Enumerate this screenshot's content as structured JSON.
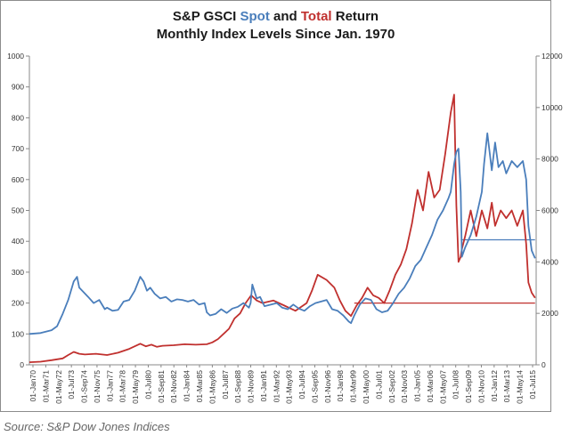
{
  "title": {
    "line1_prefix": "S&P GSCI ",
    "line1_spot": "Spot",
    "line1_and": " and ",
    "line1_total": "Total",
    "line1_suffix": " Return",
    "line2": "Monthly Index Levels Since Jan. 1970"
  },
  "source": "Source: S&P Dow Jones Indices",
  "colors": {
    "spot": "#4a7ebb",
    "total": "#c0302e",
    "axis": "#888888"
  },
  "chart_data": {
    "type": "line",
    "title": "S&P GSCI Spot and Total Return Monthly Index Levels Since Jan. 1970",
    "xlabel": "",
    "ylabel_left": "",
    "ylabel_right": "",
    "ylim_left": [
      0,
      1000
    ],
    "ylim_right": [
      0,
      12000
    ],
    "yticks_left": [
      0,
      100,
      200,
      300,
      400,
      500,
      600,
      700,
      800,
      900,
      1000
    ],
    "yticks_right": [
      0,
      2000,
      4000,
      6000,
      8000,
      10000,
      12000
    ],
    "x_tick_labels": [
      "01-Jan70",
      "01-Mar71",
      "01-May72",
      "01-Jul73",
      "01-Sep74",
      "01-Nov75",
      "01-Jan77",
      "01-Mar78",
      "01-May79",
      "01-Jul80",
      "01-Sep81",
      "01-Nov82",
      "01-Jan84",
      "01-Mar85",
      "01-May86",
      "01-Jul87",
      "01-Sep88",
      "01-Nov89",
      "01-Jan91",
      "01-Mar92",
      "01-May93",
      "01-Jul94",
      "01-Sep95",
      "01-Nov96",
      "01-Jan98",
      "01-Mar99",
      "01-May00",
      "01-Jul01",
      "01-Sep02",
      "01-Nov03",
      "01-Jan05",
      "01-Mar06",
      "01-May07",
      "01-Jul08",
      "01-Sep09",
      "01-Nov10",
      "01-Jan12",
      "01-Mar13",
      "01-May14",
      "01-Jul15"
    ],
    "x_range": [
      1970.0,
      2015.7
    ],
    "grid": false,
    "series": [
      {
        "name": "Spot",
        "axis": "left",
        "x": [
          1970.0,
          1971.0,
          1972.0,
          1972.5,
          1973.0,
          1973.5,
          1974.0,
          1974.3,
          1974.5,
          1974.9,
          1975.3,
          1975.8,
          1976.3,
          1976.8,
          1977.0,
          1977.5,
          1978.0,
          1978.5,
          1979.0,
          1979.5,
          1980.0,
          1980.3,
          1980.6,
          1980.9,
          1981.3,
          1981.8,
          1982.3,
          1982.8,
          1983.3,
          1983.8,
          1984.3,
          1984.8,
          1985.3,
          1985.8,
          1986.0,
          1986.3,
          1986.8,
          1987.3,
          1987.8,
          1988.3,
          1988.8,
          1989.3,
          1989.8,
          1989.95,
          1990.1,
          1990.5,
          1990.8,
          1991.2,
          1991.8,
          1992.3,
          1992.8,
          1993.3,
          1993.8,
          1994.3,
          1994.8,
          1995.3,
          1995.8,
          1996.3,
          1996.8,
          1997.3,
          1997.8,
          1998.3,
          1998.8,
          1999.0,
          1999.3,
          1999.8,
          2000.3,
          2000.8,
          2001.3,
          2001.8,
          2002.3,
          2002.8,
          2003.3,
          2003.8,
          2004.3,
          2004.8,
          2005.3,
          2005.8,
          2006.3,
          2006.8,
          2007.3,
          2007.8,
          2008.0,
          2008.3,
          2008.5,
          2008.7,
          2008.9,
          2009.0,
          2009.3,
          2009.8,
          2010.3,
          2010.8,
          2011.0,
          2011.3,
          2011.7,
          2012.0,
          2012.3,
          2012.7,
          2013.0,
          2013.5,
          2014.0,
          2014.5,
          2014.8,
          2015.0,
          2015.3,
          2015.6
        ],
        "y": [
          100,
          103,
          112,
          125,
          165,
          210,
          270,
          285,
          250,
          235,
          220,
          200,
          210,
          180,
          185,
          175,
          178,
          205,
          210,
          240,
          285,
          270,
          240,
          250,
          230,
          215,
          220,
          205,
          212,
          210,
          205,
          210,
          195,
          200,
          170,
          160,
          165,
          180,
          168,
          182,
          188,
          200,
          185,
          200,
          260,
          215,
          220,
          190,
          195,
          200,
          185,
          180,
          195,
          182,
          175,
          190,
          200,
          205,
          210,
          180,
          175,
          160,
          140,
          135,
          160,
          195,
          215,
          210,
          180,
          170,
          175,
          200,
          230,
          250,
          280,
          320,
          340,
          380,
          420,
          470,
          500,
          540,
          560,
          650,
          690,
          700,
          560,
          350,
          380,
          420,
          480,
          560,
          650,
          750,
          630,
          720,
          640,
          660,
          620,
          660,
          640,
          660,
          600,
          450,
          370,
          345
        ]
      },
      {
        "name": "Total",
        "axis": "right",
        "x": [
          1970.0,
          1971.0,
          1972.0,
          1973.0,
          1973.5,
          1974.0,
          1974.5,
          1975.0,
          1976.0,
          1977.0,
          1978.0,
          1979.0,
          1980.0,
          1980.5,
          1981.0,
          1981.5,
          1982.0,
          1983.0,
          1984.0,
          1985.0,
          1986.0,
          1986.5,
          1987.0,
          1988.0,
          1988.5,
          1989.0,
          1989.5,
          1990.0,
          1990.5,
          1991.0,
          1992.0,
          1993.0,
          1993.5,
          1994.0,
          1995.0,
          1995.5,
          1996.0,
          1996.8,
          1997.5,
          1998.0,
          1998.5,
          1999.0,
          1999.5,
          2000.0,
          2000.5,
          2001.0,
          2001.5,
          2002.0,
          2002.5,
          2003.0,
          2003.5,
          2004.0,
          2004.5,
          2005.0,
          2005.5,
          2006.0,
          2006.5,
          2007.0,
          2007.5,
          2008.0,
          2008.3,
          2008.5,
          2008.7,
          2008.9,
          2009.0,
          2009.3,
          2009.8,
          2010.3,
          2010.8,
          2011.3,
          2011.7,
          2012.0,
          2012.5,
          2013.0,
          2013.5,
          2014.0,
          2014.5,
          2014.8,
          2015.0,
          2015.3,
          2015.6
        ],
        "y": [
          100,
          120,
          180,
          250,
          380,
          500,
          430,
          400,
          430,
          380,
          470,
          620,
          820,
          720,
          780,
          700,
          740,
          760,
          800,
          780,
          800,
          870,
          1000,
          1400,
          1800,
          2000,
          2400,
          2700,
          2500,
          2400,
          2500,
          2300,
          2200,
          2100,
          2400,
          2900,
          3500,
          3300,
          3000,
          2500,
          2100,
          1900,
          2300,
          2600,
          3000,
          2700,
          2600,
          2400,
          2900,
          3500,
          3900,
          4500,
          5500,
          6800,
          6000,
          7500,
          6500,
          6800,
          8200,
          9800,
          10500,
          6200,
          4000,
          4200,
          4500,
          5000,
          6000,
          5000,
          6000,
          5300,
          6300,
          5400,
          6000,
          5700,
          6000,
          5400,
          6000,
          4700,
          3200,
          2800,
          2600
        ]
      }
    ],
    "reference_lines": [
      {
        "series": "Spot",
        "axis": "left",
        "value": 405,
        "from_x": 2008.9,
        "to_x": 2015.6
      },
      {
        "series": "Total",
        "axis": "right",
        "value": 2400,
        "from_x": 1999.3,
        "to_x": 2015.6
      }
    ]
  }
}
